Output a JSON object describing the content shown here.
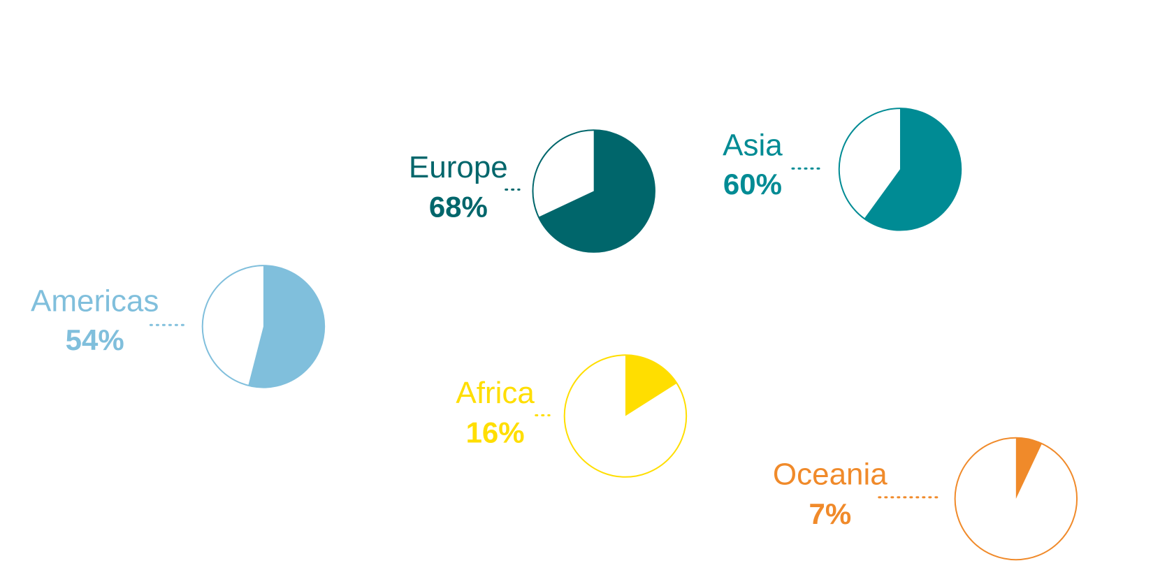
{
  "chart_data": {
    "type": "pie",
    "categories": [
      "Europe",
      "Asia",
      "Americas",
      "Africa",
      "Oceania"
    ],
    "values": [
      68,
      60,
      54,
      16,
      7
    ],
    "value_labels": [
      "68%",
      "60%",
      "54%",
      "16%",
      "7%"
    ],
    "colors": [
      "#00666b",
      "#008b94",
      "#80bfdc",
      "#ffde00",
      "#f08a2a"
    ]
  }
}
